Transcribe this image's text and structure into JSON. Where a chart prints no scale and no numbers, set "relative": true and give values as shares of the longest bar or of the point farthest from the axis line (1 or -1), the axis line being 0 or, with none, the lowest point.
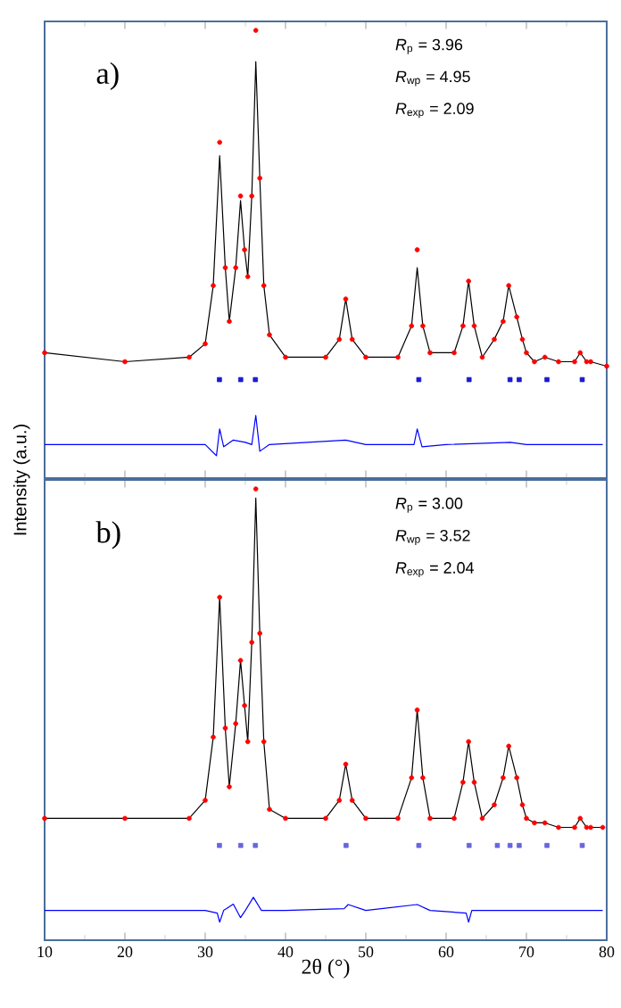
{
  "chart_data": [
    {
      "type": "line",
      "relative": true,
      "tick_labels": false,
      "xlim": [
        10,
        80
      ],
      "xticks": [
        10,
        20,
        30,
        40,
        50,
        60,
        70,
        80
      ],
      "annotations": [
        "a)",
        "*R*$_{p}$ = 3.96",
        "*R*$_{wp}$ = 4.95",
        "*R*$_{exp}$ = 2.09"
      ],
      "x": [
        10,
        20,
        28,
        30,
        31,
        31.8,
        32.5,
        33,
        33.8,
        34.4,
        34.9,
        35.3,
        35.8,
        36.3,
        36.8,
        37.3,
        38,
        40,
        45,
        46.7,
        47.5,
        48.3,
        50,
        54,
        55.7,
        56.4,
        57.1,
        58,
        61,
        62.1,
        62.8,
        63.5,
        64.5,
        66,
        67.1,
        67.8,
        68.8,
        69.5,
        70,
        71,
        72.3,
        74,
        76,
        76.7,
        77.5,
        78,
        80
      ],
      "series": [
        {
          "type": "scatter",
          "marker": "circle",
          "color": "#ff0000",
          "values": [
            0.28,
            0.26,
            0.27,
            0.3,
            0.43,
            0.75,
            0.47,
            0.35,
            0.47,
            0.63,
            0.51,
            0.45,
            0.63,
            1,
            0.67,
            0.43,
            0.32,
            0.27,
            0.27,
            0.31,
            0.4,
            0.31,
            0.27,
            0.27,
            0.34,
            0.51,
            0.34,
            0.28,
            0.28,
            0.34,
            0.44,
            0.34,
            0.27,
            0.31,
            0.35,
            0.43,
            0.36,
            0.31,
            0.28,
            0.26,
            0.27,
            0.26,
            0.26,
            0.28,
            0.26,
            0.26,
            0.25
          ]
        },
        {
          "color": "#000000",
          "values": [
            0.28,
            0.26,
            0.27,
            0.3,
            0.43,
            0.72,
            0.47,
            0.35,
            0.47,
            0.62,
            0.51,
            0.45,
            0.63,
            0.93,
            0.67,
            0.43,
            0.32,
            0.27,
            0.27,
            0.31,
            0.4,
            0.31,
            0.27,
            0.27,
            0.34,
            0.47,
            0.34,
            0.28,
            0.28,
            0.34,
            0.44,
            0.34,
            0.27,
            0.31,
            0.35,
            0.43,
            0.36,
            0.31,
            0.28,
            0.26,
            0.27,
            0.26,
            0.26,
            0.28,
            0.26,
            0.26,
            0.25
          ]
        },
        {
          "type": "scatter",
          "marker": "square",
          "color": "#1a1acc",
          "x": [
            31.77,
            34.42,
            36.25,
            56.6,
            62.86,
            67.96,
            69.1,
            72.56,
            76.95
          ],
          "values": [
            0.22,
            0.22,
            0.22,
            0.22,
            0.22,
            0.22,
            0.22,
            0.22,
            0.22
          ]
        },
        {
          "color": "#0000ff",
          "x": [
            10,
            30,
            31.4,
            31.8,
            32.3,
            33.5,
            35,
            35.8,
            36.3,
            36.8,
            38,
            47.5,
            50,
            56.0,
            56.4,
            57,
            60,
            68,
            70,
            79.5
          ],
          "values": [
            0.075,
            0.075,
            0.05,
            0.11,
            0.07,
            0.085,
            0.08,
            0.075,
            0.14,
            0.06,
            0.075,
            0.085,
            0.075,
            0.075,
            0.11,
            0.07,
            0.075,
            0.08,
            0.075,
            0.075
          ]
        }
      ]
    },
    {
      "type": "line",
      "relative": true,
      "tick_labels": "x",
      "xlim": [
        10,
        80
      ],
      "xticks": [
        10,
        20,
        30,
        40,
        50,
        60,
        70,
        80
      ],
      "xlabel": "2θ (°)",
      "ylabel": "Intensity (a.u.)",
      "annotations": [
        "b)",
        "*R*$_{p}$ = 3.00",
        "*R*$_{wp}$ = 3.52",
        "*R*$_{exp}$ = 2.04"
      ],
      "x": [
        10,
        20,
        28,
        30,
        31,
        31.8,
        32.5,
        33,
        33.8,
        34.4,
        34.9,
        35.3,
        35.8,
        36.3,
        36.8,
        37.3,
        38,
        40,
        45,
        46.7,
        47.5,
        48.3,
        50,
        54,
        55.7,
        56.4,
        57.1,
        58,
        61,
        62.1,
        62.8,
        63.5,
        64.5,
        66,
        67.1,
        67.8,
        68.8,
        69.5,
        70,
        71,
        72.3,
        74,
        76,
        76.7,
        77.5,
        78,
        79.5
      ],
      "series": [
        {
          "type": "scatter",
          "marker": "circle",
          "color": "#ff0000",
          "values": [
            0.27,
            0.27,
            0.27,
            0.31,
            0.45,
            0.76,
            0.47,
            0.34,
            0.48,
            0.62,
            0.52,
            0.44,
            0.66,
            1,
            0.68,
            0.44,
            0.29,
            0.27,
            0.27,
            0.31,
            0.39,
            0.31,
            0.27,
            0.27,
            0.36,
            0.51,
            0.36,
            0.27,
            0.27,
            0.35,
            0.44,
            0.35,
            0.27,
            0.3,
            0.36,
            0.43,
            0.36,
            0.3,
            0.27,
            0.26,
            0.26,
            0.25,
            0.25,
            0.27,
            0.25,
            0.25,
            0.25
          ]
        },
        {
          "color": "#000000",
          "values": [
            0.27,
            0.27,
            0.27,
            0.31,
            0.45,
            0.76,
            0.47,
            0.34,
            0.48,
            0.62,
            0.52,
            0.44,
            0.66,
            0.98,
            0.68,
            0.44,
            0.29,
            0.27,
            0.27,
            0.31,
            0.39,
            0.31,
            0.27,
            0.27,
            0.36,
            0.51,
            0.36,
            0.27,
            0.27,
            0.35,
            0.44,
            0.35,
            0.27,
            0.3,
            0.36,
            0.43,
            0.36,
            0.3,
            0.27,
            0.26,
            0.26,
            0.25,
            0.25,
            0.27,
            0.25,
            0.25,
            0.25
          ]
        },
        {
          "type": "scatter",
          "marker": "square",
          "color": "#6666dd",
          "x": [
            31.77,
            34.42,
            36.25,
            47.54,
            56.6,
            62.86,
            66.38,
            67.96,
            69.1,
            72.56,
            76.95
          ],
          "values": [
            0.21,
            0.21,
            0.21,
            0.21,
            0.21,
            0.21,
            0.21,
            0.21,
            0.21,
            0.21,
            0.21
          ]
        },
        {
          "color": "#0000ff",
          "x": [
            10,
            30,
            31.5,
            31.8,
            32.3,
            33.5,
            34.4,
            35,
            36,
            37,
            40,
            47.3,
            47.8,
            50,
            56.4,
            58,
            62.5,
            62.8,
            63.2,
            66,
            79.5
          ],
          "values": [
            0.066,
            0.066,
            0.06,
            0.04,
            0.066,
            0.08,
            0.05,
            0.066,
            0.095,
            0.066,
            0.066,
            0.07,
            0.079,
            0.066,
            0.079,
            0.066,
            0.06,
            0.04,
            0.066,
            0.066,
            0.066
          ]
        }
      ]
    }
  ]
}
